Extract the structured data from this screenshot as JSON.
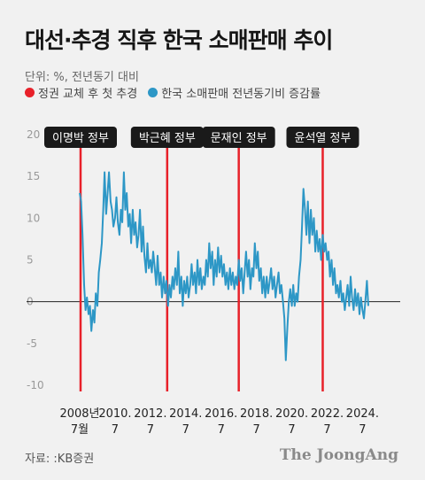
{
  "header": {
    "title": "대선·추경 직후 한국 소매판매 추이",
    "unit": "단위: %, 전년동기 대비"
  },
  "legend": {
    "items": [
      {
        "label": "정권 교체 후 첫 추경",
        "color": "#e8212a"
      },
      {
        "label": "한국 소매판매 전년동기비 증감률",
        "color": "#2d97c6"
      }
    ]
  },
  "footer": {
    "source": "자료: :KB증권",
    "brand": "The JoongAng"
  },
  "chart_data": {
    "type": "line",
    "ylim": [
      -10,
      20
    ],
    "yticks": [
      20,
      15,
      10,
      5,
      0,
      -5,
      -10
    ],
    "xlim": [
      2008.5,
      2024.83
    ],
    "xticks": [
      {
        "x": 2008.5,
        "line1": "2008년",
        "line2": "7월"
      },
      {
        "x": 2010.5,
        "line1": "2010.",
        "line2": "7"
      },
      {
        "x": 2012.5,
        "line1": "2012.",
        "line2": "7"
      },
      {
        "x": 2014.5,
        "line1": "2014.",
        "line2": "7"
      },
      {
        "x": 2016.5,
        "line1": "2016.",
        "line2": "7"
      },
      {
        "x": 2018.5,
        "line1": "2018.",
        "line2": "7"
      },
      {
        "x": 2020.5,
        "line1": "2020.",
        "line2": "7"
      },
      {
        "x": 2022.5,
        "line1": "2022.",
        "line2": "7"
      },
      {
        "x": 2024.5,
        "line1": "2024.",
        "line2": "7"
      }
    ],
    "events": [
      {
        "label": "이명박 정부",
        "x": 2008.55
      },
      {
        "label": "박근혜 정부",
        "x": 2013.45
      },
      {
        "label": "문재인 정부",
        "x": 2017.5
      },
      {
        "label": "윤석열 정부",
        "x": 2022.25
      }
    ],
    "series": [
      {
        "color": "#2d97c6",
        "points": [
          [
            2008.5,
            13.0
          ],
          [
            2008.58,
            12.0
          ],
          [
            2008.66,
            8.0
          ],
          [
            2008.75,
            2.0
          ],
          [
            2008.83,
            -1.0
          ],
          [
            2008.91,
            0.5
          ],
          [
            2009.0,
            -1.5
          ],
          [
            2009.08,
            -0.5
          ],
          [
            2009.16,
            -3.5
          ],
          [
            2009.25,
            -1.0
          ],
          [
            2009.33,
            -2.5
          ],
          [
            2009.41,
            1.0
          ],
          [
            2009.5,
            -0.5
          ],
          [
            2009.58,
            3.5
          ],
          [
            2009.66,
            5.0
          ],
          [
            2009.75,
            7.0
          ],
          [
            2009.83,
            11.0
          ],
          [
            2009.91,
            15.5
          ],
          [
            2010.0,
            10.5
          ],
          [
            2010.08,
            13.0
          ],
          [
            2010.16,
            15.5
          ],
          [
            2010.25,
            12.0
          ],
          [
            2010.33,
            11.0
          ],
          [
            2010.41,
            9.0
          ],
          [
            2010.5,
            10.0
          ],
          [
            2010.58,
            12.5
          ],
          [
            2010.66,
            9.5
          ],
          [
            2010.75,
            8.0
          ],
          [
            2010.83,
            11.0
          ],
          [
            2010.91,
            9.5
          ],
          [
            2011.0,
            15.5
          ],
          [
            2011.08,
            11.0
          ],
          [
            2011.16,
            13.0
          ],
          [
            2011.25,
            9.0
          ],
          [
            2011.33,
            10.5
          ],
          [
            2011.41,
            7.0
          ],
          [
            2011.5,
            11.0
          ],
          [
            2011.58,
            8.0
          ],
          [
            2011.66,
            9.5
          ],
          [
            2011.75,
            6.5
          ],
          [
            2011.83,
            8.0
          ],
          [
            2011.91,
            11.0
          ],
          [
            2012.0,
            6.0
          ],
          [
            2012.08,
            9.0
          ],
          [
            2012.16,
            5.5
          ],
          [
            2012.25,
            3.5
          ],
          [
            2012.33,
            7.0
          ],
          [
            2012.41,
            4.0
          ],
          [
            2012.5,
            5.0
          ],
          [
            2012.58,
            3.5
          ],
          [
            2012.66,
            6.0
          ],
          [
            2012.75,
            4.0
          ],
          [
            2012.83,
            2.0
          ],
          [
            2012.91,
            5.5
          ],
          [
            2013.0,
            2.0
          ],
          [
            2013.08,
            3.5
          ],
          [
            2013.16,
            0.5
          ],
          [
            2013.25,
            3.0
          ],
          [
            2013.33,
            1.0
          ],
          [
            2013.41,
            2.5
          ],
          [
            2013.5,
            -0.5
          ],
          [
            2013.58,
            2.0
          ],
          [
            2013.66,
            0.5
          ],
          [
            2013.75,
            3.0
          ],
          [
            2013.83,
            1.5
          ],
          [
            2013.91,
            4.0
          ],
          [
            2014.0,
            2.0
          ],
          [
            2014.08,
            6.0
          ],
          [
            2014.16,
            1.0
          ],
          [
            2014.25,
            3.0
          ],
          [
            2014.33,
            -0.5
          ],
          [
            2014.41,
            2.5
          ],
          [
            2014.5,
            1.0
          ],
          [
            2014.58,
            3.0
          ],
          [
            2014.66,
            0.5
          ],
          [
            2014.75,
            2.0
          ],
          [
            2014.83,
            4.5
          ],
          [
            2014.91,
            2.0
          ],
          [
            2015.0,
            3.5
          ],
          [
            2015.08,
            1.0
          ],
          [
            2015.16,
            5.0
          ],
          [
            2015.25,
            2.0
          ],
          [
            2015.33,
            4.0
          ],
          [
            2015.41,
            1.5
          ],
          [
            2015.5,
            3.0
          ],
          [
            2015.58,
            2.0
          ],
          [
            2015.66,
            5.0
          ],
          [
            2015.75,
            3.0
          ],
          [
            2015.83,
            7.0
          ],
          [
            2015.91,
            4.0
          ],
          [
            2016.0,
            6.0
          ],
          [
            2016.08,
            2.0
          ],
          [
            2016.16,
            5.0
          ],
          [
            2016.25,
            3.0
          ],
          [
            2016.33,
            6.5
          ],
          [
            2016.41,
            3.5
          ],
          [
            2016.5,
            5.5
          ],
          [
            2016.58,
            3.0
          ],
          [
            2016.66,
            4.5
          ],
          [
            2016.75,
            2.0
          ],
          [
            2016.83,
            3.5
          ],
          [
            2016.91,
            1.5
          ],
          [
            2017.0,
            4.0
          ],
          [
            2017.08,
            2.0
          ],
          [
            2017.16,
            3.5
          ],
          [
            2017.25,
            1.5
          ],
          [
            2017.33,
            3.0
          ],
          [
            2017.41,
            2.0
          ],
          [
            2017.5,
            5.0
          ],
          [
            2017.58,
            2.5
          ],
          [
            2017.66,
            4.0
          ],
          [
            2017.75,
            1.0
          ],
          [
            2017.83,
            3.5
          ],
          [
            2017.91,
            6.0
          ],
          [
            2018.0,
            3.0
          ],
          [
            2018.08,
            5.0
          ],
          [
            2018.16,
            1.5
          ],
          [
            2018.25,
            4.0
          ],
          [
            2018.33,
            3.0
          ],
          [
            2018.41,
            7.0
          ],
          [
            2018.5,
            4.0
          ],
          [
            2018.58,
            6.0
          ],
          [
            2018.66,
            2.5
          ],
          [
            2018.75,
            4.0
          ],
          [
            2018.83,
            1.0
          ],
          [
            2018.91,
            3.0
          ],
          [
            2019.0,
            0.5
          ],
          [
            2019.08,
            3.0
          ],
          [
            2019.16,
            1.0
          ],
          [
            2019.25,
            2.5
          ],
          [
            2019.33,
            4.0
          ],
          [
            2019.41,
            1.5
          ],
          [
            2019.5,
            3.0
          ],
          [
            2019.58,
            0.5
          ],
          [
            2019.66,
            2.0
          ],
          [
            2019.75,
            3.5
          ],
          [
            2019.83,
            1.0
          ],
          [
            2019.91,
            2.0
          ],
          [
            2020.0,
            0.0
          ],
          [
            2020.08,
            -2.0
          ],
          [
            2020.16,
            -7.0
          ],
          [
            2020.25,
            -3.0
          ],
          [
            2020.33,
            0.0
          ],
          [
            2020.41,
            1.5
          ],
          [
            2020.5,
            -0.5
          ],
          [
            2020.58,
            2.0
          ],
          [
            2020.66,
            -0.5
          ],
          [
            2020.75,
            1.0
          ],
          [
            2020.83,
            0.0
          ],
          [
            2020.91,
            3.0
          ],
          [
            2021.0,
            5.0
          ],
          [
            2021.08,
            9.0
          ],
          [
            2021.16,
            13.5
          ],
          [
            2021.25,
            11.0
          ],
          [
            2021.33,
            8.0
          ],
          [
            2021.41,
            12.0
          ],
          [
            2021.5,
            7.0
          ],
          [
            2021.58,
            11.0
          ],
          [
            2021.66,
            8.0
          ],
          [
            2021.75,
            10.0
          ],
          [
            2021.83,
            6.0
          ],
          [
            2021.91,
            8.5
          ],
          [
            2022.0,
            6.0
          ],
          [
            2022.08,
            7.5
          ],
          [
            2022.16,
            5.0
          ],
          [
            2022.25,
            8.0
          ],
          [
            2022.33,
            6.0
          ],
          [
            2022.41,
            7.0
          ],
          [
            2022.5,
            5.0
          ],
          [
            2022.58,
            6.0
          ],
          [
            2022.66,
            3.0
          ],
          [
            2022.75,
            5.0
          ],
          [
            2022.83,
            2.0
          ],
          [
            2022.91,
            4.0
          ],
          [
            2023.0,
            1.0
          ],
          [
            2023.08,
            2.0
          ],
          [
            2023.16,
            0.5
          ],
          [
            2023.25,
            2.5
          ],
          [
            2023.33,
            0.0
          ],
          [
            2023.41,
            1.0
          ],
          [
            2023.5,
            -1.0
          ],
          [
            2023.58,
            0.5
          ],
          [
            2023.66,
            2.0
          ],
          [
            2023.75,
            -0.5
          ],
          [
            2023.83,
            3.0
          ],
          [
            2023.91,
            0.5
          ],
          [
            2024.0,
            -1.0
          ],
          [
            2024.08,
            1.5
          ],
          [
            2024.16,
            -0.5
          ],
          [
            2024.25,
            1.0
          ],
          [
            2024.33,
            -1.5
          ],
          [
            2024.41,
            0.5
          ],
          [
            2024.5,
            -1.0
          ],
          [
            2024.58,
            -2.0
          ],
          [
            2024.66,
            0.0
          ],
          [
            2024.75,
            2.5
          ],
          [
            2024.83,
            -0.5
          ]
        ]
      }
    ]
  }
}
